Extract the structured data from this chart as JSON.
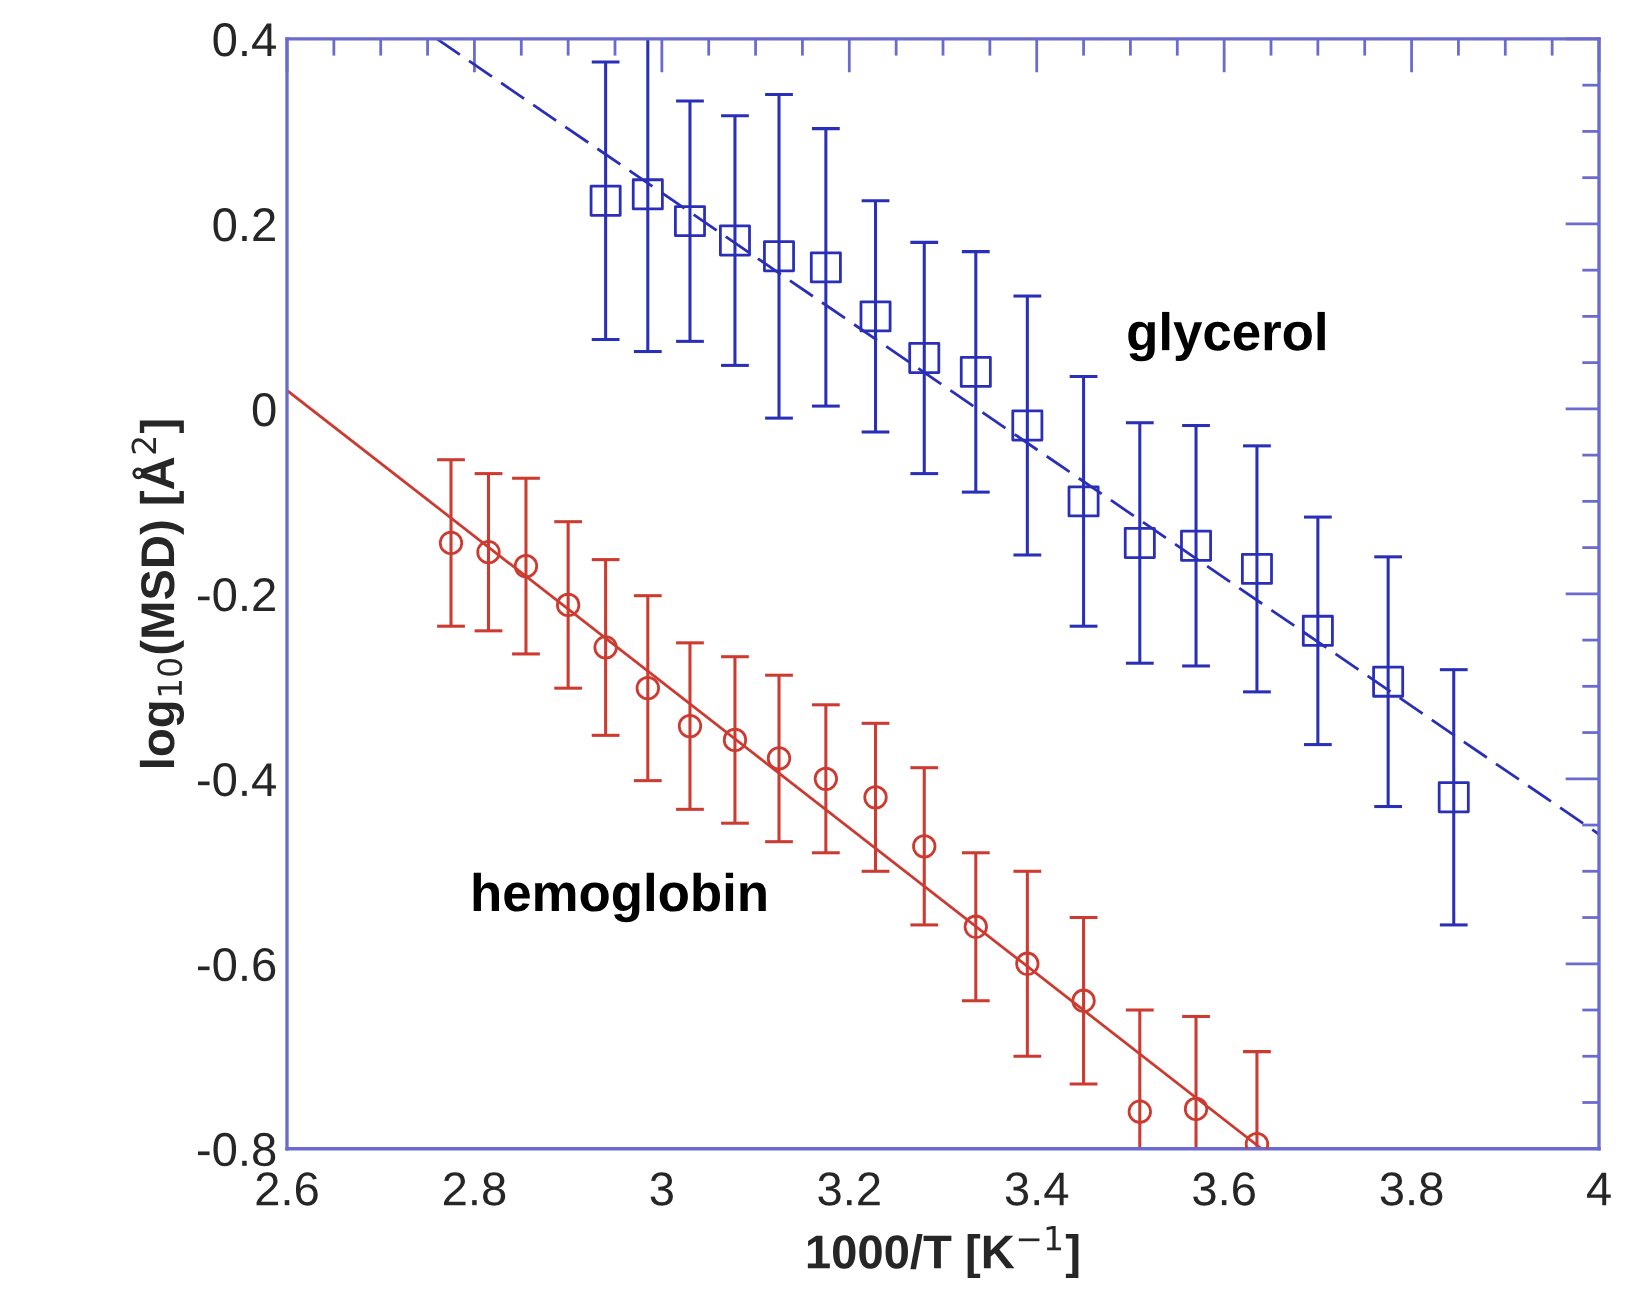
{
  "chart_data": {
    "type": "scatter",
    "xlabel": "1000/T [K$^{−1}$]",
    "ylabel": "log$_{10}$(MSD) [Å$^{2}$]",
    "xlim": [
      2.6,
      4
    ],
    "xticks": [
      2.6,
      2.8,
      3,
      3.2,
      3.4,
      3.6,
      3.8,
      4
    ],
    "ylim": [
      -0.8,
      0.4
    ],
    "yticks": [
      -0.8,
      -0.6,
      -0.4,
      -0.2,
      0,
      0.2,
      0.4
    ],
    "grid": false,
    "legend": false,
    "series": [
      {
        "name": "glycerol",
        "marker": "square",
        "color": "#2a2fb8",
        "x": [
          2.94,
          2.985,
          3.03,
          3.078,
          3.125,
          3.175,
          3.228,
          3.28,
          3.335,
          3.39,
          3.45,
          3.51,
          3.57,
          3.635,
          3.7,
          3.775,
          3.845
        ],
        "values": [
          0.225,
          0.232,
          0.203,
          0.182,
          0.165,
          0.153,
          0.1,
          0.055,
          0.04,
          -0.018,
          -0.1,
          -0.145,
          -0.148,
          -0.173,
          -0.24,
          -0.295,
          -0.42
        ],
        "errors": [
          0.15,
          0.17,
          0.13,
          0.135,
          0.175,
          0.15,
          0.125,
          0.125,
          0.13,
          0.14,
          0.135,
          0.13,
          0.13,
          0.133,
          0.123,
          0.135,
          0.138
        ]
      },
      {
        "type": "line",
        "line_style": "dashed",
        "color": "#2a2fb8",
        "x": [
          2.76,
          4.0
        ],
        "values": [
          0.4,
          -0.46
        ]
      },
      {
        "name": "hemoglobin",
        "marker": "circle",
        "color": "#cc3a30",
        "x": [
          2.775,
          2.815,
          2.855,
          2.9,
          2.94,
          2.985,
          3.03,
          3.078,
          3.125,
          3.175,
          3.228,
          3.28,
          3.335,
          3.39,
          3.45,
          3.51,
          3.57,
          3.635
        ],
        "values": [
          -0.145,
          -0.155,
          -0.17,
          -0.212,
          -0.258,
          -0.302,
          -0.343,
          -0.358,
          -0.378,
          -0.4,
          -0.42,
          -0.473,
          -0.56,
          -0.6,
          -0.64,
          -0.76,
          -0.757,
          -0.795
        ],
        "errors": [
          0.09,
          0.085,
          0.095,
          0.09,
          0.095,
          0.1,
          0.09,
          0.09,
          0.09,
          0.08,
          0.08,
          0.085,
          0.08,
          0.1,
          0.09,
          0.11,
          0.1,
          0.1
        ]
      },
      {
        "type": "line",
        "line_style": "solid",
        "color": "#cc3a30",
        "x": [
          2.6,
          3.64
        ],
        "values": [
          0.02,
          -0.8
        ]
      }
    ]
  }
}
